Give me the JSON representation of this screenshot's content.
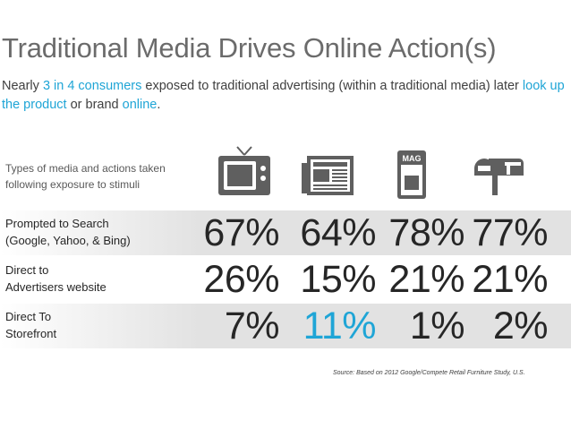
{
  "title": "Traditional Media Drives Online Action(s)",
  "subtitle": {
    "part1": "Nearly ",
    "hl1": "3 in 4 consumers",
    "part2": " exposed to traditional advertising (within a traditional media) later ",
    "hl2": "look up the product",
    "part3": " or brand ",
    "hl3": "online",
    "part4": "."
  },
  "caption": "Types of media and actions taken following exposure to  stimuli",
  "icons": [
    {
      "name": "television-icon"
    },
    {
      "name": "newspaper-icon"
    },
    {
      "name": "magazine-icon",
      "label": "MAG"
    },
    {
      "name": "mailbox-icon"
    }
  ],
  "colors": {
    "accent": "#1fa5d6",
    "row_band": "#e2e2e2",
    "icon": "#5f5f5f"
  },
  "chart_data": {
    "type": "table",
    "columns": [
      "Television",
      "Newspaper",
      "Magazine",
      "Direct mail"
    ],
    "rows": [
      {
        "label": "Prompted to Search (Google, Yahoo, & Bing)",
        "label_line1": "Prompted to Search",
        "label_line2": "(Google, Yahoo, & Bing)",
        "values": [
          "67%",
          "64%",
          "78%",
          "77%"
        ],
        "highlight": [
          false,
          false,
          false,
          false
        ]
      },
      {
        "label": "Direct to Advertisers website",
        "label_line1": "Direct to",
        "label_line2": "Advertisers website",
        "values": [
          "26%",
          "15%",
          "21%",
          "21%"
        ],
        "highlight": [
          false,
          false,
          false,
          false
        ]
      },
      {
        "label": "Direct To Storefront",
        "label_line1": "Direct To",
        "label_line2": "Storefront",
        "values": [
          "7%",
          "11%",
          "1%",
          "2%"
        ],
        "highlight": [
          false,
          true,
          false,
          false
        ]
      }
    ]
  },
  "source": "Source: Based on 2012 Google/Compete Retail Furniture Study, U.S."
}
